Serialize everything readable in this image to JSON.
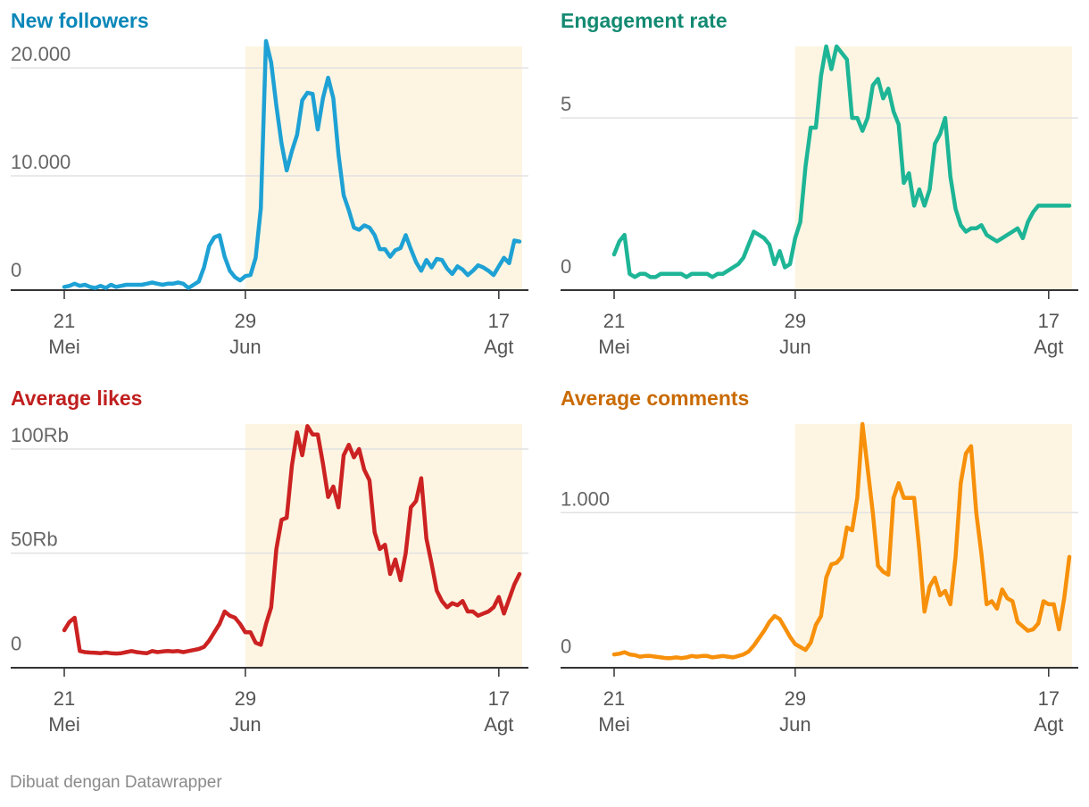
{
  "footer": {
    "text": "Dibuat dengan Datawrapper"
  },
  "colors": {
    "highlight": "#fdf5e2",
    "grid": "#e2e2e2",
    "axis": "#333333",
    "tick_text": "#666666"
  },
  "chart_data": [
    {
      "type": "line",
      "title": "New followers",
      "color": "#1ea1d4",
      "title_color": "#0a87b8",
      "ylim": [
        -600,
        22000
      ],
      "yticks": [
        0,
        10000,
        20000
      ],
      "ytick_labels": [
        "0",
        "10.000",
        "20.000"
      ],
      "x": [
        0,
        1,
        2,
        3,
        4,
        5,
        6,
        7,
        8,
        9,
        10,
        11,
        12,
        13,
        14,
        15,
        16,
        17,
        18,
        19,
        20,
        21,
        22,
        23,
        24,
        25,
        26,
        27,
        28,
        29,
        30,
        31,
        32,
        33,
        34,
        35,
        36,
        37,
        38,
        39,
        40,
        41,
        42,
        43,
        44,
        45,
        46,
        47,
        48,
        49,
        50,
        51,
        52,
        53,
        54,
        55,
        56,
        57,
        58,
        59,
        60,
        61,
        62,
        63,
        64,
        65,
        66,
        67,
        68,
        69,
        70,
        71,
        72,
        73,
        74,
        75,
        76,
        77,
        78,
        79,
        80,
        81,
        82,
        83,
        84,
        85,
        86,
        87,
        88
      ],
      "values": [
        -300,
        -200,
        0,
        -200,
        -100,
        -300,
        -400,
        -200,
        -400,
        -100,
        -300,
        -200,
        -100,
        -100,
        -100,
        -100,
        0,
        100,
        0,
        -100,
        0,
        0,
        100,
        0,
        -400,
        -100,
        200,
        1500,
        3500,
        4300,
        4500,
        2500,
        1200,
        600,
        300,
        700,
        800,
        2400,
        7000,
        22500,
        20500,
        16500,
        13000,
        10500,
        12300,
        13800,
        17000,
        17700,
        17600,
        14300,
        17200,
        19100,
        17200,
        12000,
        8200,
        6800,
        5200,
        5000,
        5400,
        5200,
        4500,
        3200,
        3200,
        2500,
        3100,
        3300,
        4500,
        3200,
        2000,
        1200,
        2200,
        1500,
        2300,
        2200,
        1400,
        900,
        1600,
        1300,
        800,
        1200,
        1700,
        1500,
        1200,
        800,
        1600,
        2400,
        1900,
        4000,
        3900
      ],
      "xticks": [
        {
          "x": 0,
          "day": "21",
          "month": "Mei"
        },
        {
          "x": 35,
          "day": "29",
          "month": "Jun"
        },
        {
          "x": 84,
          "day": "17",
          "month": "Agt"
        }
      ],
      "highlight_range": [
        35,
        84
      ]
    },
    {
      "type": "line",
      "title": "Engagement rate",
      "color": "#1db596",
      "title_color": "#138a72",
      "ylim": [
        -0.3,
        7.2
      ],
      "yticks": [
        0,
        5
      ],
      "ytick_labels": [
        "0",
        "5"
      ],
      "x": [
        0,
        1,
        2,
        3,
        4,
        5,
        6,
        7,
        8,
        9,
        10,
        11,
        12,
        13,
        14,
        15,
        16,
        17,
        18,
        19,
        20,
        21,
        22,
        23,
        24,
        25,
        26,
        27,
        28,
        29,
        30,
        31,
        32,
        33,
        34,
        35,
        36,
        37,
        38,
        39,
        40,
        41,
        42,
        43,
        44,
        45,
        46,
        47,
        48,
        49,
        50,
        51,
        52,
        53,
        54,
        55,
        56,
        57,
        58,
        59,
        60,
        61,
        62,
        63,
        64,
        65,
        66,
        67,
        68,
        69,
        70,
        71,
        72,
        73,
        74,
        75,
        76,
        77,
        78,
        79,
        80,
        81,
        82,
        83,
        84,
        85,
        86,
        87,
        88
      ],
      "values": [
        0.8,
        1.2,
        1.4,
        0.2,
        0.1,
        0.2,
        0.2,
        0.1,
        0.1,
        0.2,
        0.2,
        0.2,
        0.2,
        0.2,
        0.1,
        0.2,
        0.2,
        0.2,
        0.2,
        0.1,
        0.2,
        0.2,
        0.3,
        0.4,
        0.5,
        0.7,
        1.1,
        1.5,
        1.4,
        1.3,
        1.1,
        0.5,
        0.9,
        0.4,
        0.5,
        1.3,
        1.8,
        3.5,
        4.7,
        4.7,
        6.3,
        7.2,
        6.5,
        7.2,
        7.0,
        6.8,
        5.0,
        5.0,
        4.6,
        5.0,
        6.0,
        6.2,
        5.6,
        5.9,
        5.2,
        4.8,
        3.0,
        3.3,
        2.3,
        2.8,
        2.3,
        2.8,
        4.2,
        4.5,
        5.0,
        3.2,
        2.2,
        1.7,
        1.5,
        1.6,
        1.6,
        1.7,
        1.4,
        1.3,
        1.2,
        1.3,
        1.4,
        1.5,
        1.6,
        1.3,
        1.8,
        2.1,
        2.3,
        2.3,
        2.3,
        2.3,
        2.3,
        2.3,
        2.3
      ],
      "xticks": [
        {
          "x": 0,
          "day": "21",
          "month": "Mei"
        },
        {
          "x": 35,
          "day": "29",
          "month": "Jun"
        },
        {
          "x": 84,
          "day": "17",
          "month": "Agt"
        }
      ],
      "highlight_range": [
        35,
        84
      ]
    },
    {
      "type": "line",
      "title": "Average likes",
      "color": "#cc2222",
      "title_color": "#c01f1f",
      "ylim": [
        -5000,
        112000
      ],
      "yticks": [
        0,
        50000,
        100000
      ],
      "ytick_labels": [
        "0",
        "50Rb",
        "100Rb"
      ],
      "x": [
        0,
        1,
        2,
        3,
        4,
        5,
        6,
        7,
        8,
        9,
        10,
        11,
        12,
        13,
        14,
        15,
        16,
        17,
        18,
        19,
        20,
        21,
        22,
        23,
        24,
        25,
        26,
        27,
        28,
        29,
        30,
        31,
        32,
        33,
        34,
        35,
        36,
        37,
        38,
        39,
        40,
        41,
        42,
        43,
        44,
        45,
        46,
        47,
        48,
        49,
        50,
        51,
        52,
        53,
        54,
        55,
        56,
        57,
        58,
        59,
        60,
        61,
        62,
        63,
        64,
        65,
        66,
        67,
        68,
        69,
        70,
        71,
        72,
        73,
        74,
        75,
        76,
        77,
        78,
        79,
        80,
        81,
        82,
        83,
        84,
        85,
        86,
        87,
        88
      ],
      "values": [
        13000,
        17000,
        19000,
        3000,
        2500,
        2300,
        2200,
        2000,
        2300,
        2000,
        1800,
        2000,
        2500,
        3000,
        2500,
        2200,
        2000,
        3000,
        2500,
        2800,
        3000,
        2800,
        3000,
        2500,
        3000,
        3500,
        4000,
        5000,
        8000,
        12000,
        16000,
        22000,
        20000,
        19000,
        16000,
        12000,
        12000,
        7000,
        6000,
        16000,
        24000,
        52000,
        66000,
        67000,
        92000,
        108000,
        97000,
        111000,
        107000,
        107000,
        93000,
        77000,
        82000,
        72000,
        97000,
        102000,
        96000,
        100000,
        90000,
        85000,
        60000,
        52000,
        54000,
        40000,
        47000,
        37000,
        50000,
        72000,
        75000,
        86000,
        57000,
        45000,
        32000,
        27000,
        24000,
        26000,
        25000,
        27000,
        22000,
        22000,
        20000,
        21000,
        22000,
        24000,
        29000,
        21000,
        28000,
        35000,
        40000
      ],
      "xticks": [
        {
          "x": 0,
          "day": "21",
          "month": "Mei"
        },
        {
          "x": 35,
          "day": "29",
          "month": "Jun"
        },
        {
          "x": 84,
          "day": "17",
          "month": "Agt"
        }
      ],
      "highlight_range": [
        35,
        84
      ]
    },
    {
      "type": "line",
      "title": "Average comments",
      "color": "#f7900a",
      "title_color": "#c96a00",
      "ylim": [
        -50,
        1600
      ],
      "yticks": [
        0,
        1000
      ],
      "ytick_labels": [
        "0",
        "1.000"
      ],
      "x": [
        0,
        1,
        2,
        3,
        4,
        5,
        6,
        7,
        8,
        9,
        10,
        11,
        12,
        13,
        14,
        15,
        16,
        17,
        18,
        19,
        20,
        21,
        22,
        23,
        24,
        25,
        26,
        27,
        28,
        29,
        30,
        31,
        32,
        33,
        34,
        35,
        36,
        37,
        38,
        39,
        40,
        41,
        42,
        43,
        44,
        45,
        46,
        47,
        48,
        49,
        50,
        51,
        52,
        53,
        54,
        55,
        56,
        57,
        58,
        59,
        60,
        61,
        62,
        63,
        64,
        65,
        66,
        67,
        68,
        69,
        70,
        71,
        72,
        73,
        74,
        75,
        76,
        77,
        78,
        79,
        80,
        81,
        82,
        83,
        84,
        85,
        86,
        87,
        88
      ],
      "values": [
        40,
        45,
        55,
        40,
        35,
        25,
        30,
        30,
        25,
        20,
        15,
        15,
        20,
        15,
        20,
        30,
        25,
        30,
        30,
        20,
        25,
        30,
        25,
        20,
        30,
        40,
        60,
        100,
        150,
        200,
        260,
        300,
        280,
        220,
        160,
        110,
        90,
        70,
        120,
        240,
        300,
        560,
        650,
        660,
        700,
        900,
        880,
        1100,
        1600,
        1300,
        1000,
        640,
        600,
        580,
        1100,
        1200,
        1100,
        1100,
        1100,
        750,
        330,
        500,
        560,
        440,
        470,
        380,
        700,
        1200,
        1400,
        1450,
        1000,
        720,
        380,
        400,
        350,
        480,
        420,
        400,
        260,
        230,
        200,
        210,
        250,
        400,
        380,
        380,
        210,
        420,
        700
      ],
      "xticks": [
        {
          "x": 0,
          "day": "21",
          "month": "Mei"
        },
        {
          "x": 35,
          "day": "29",
          "month": "Jun"
        },
        {
          "x": 84,
          "day": "17",
          "month": "Agt"
        }
      ],
      "highlight_range": [
        35,
        84
      ]
    }
  ]
}
